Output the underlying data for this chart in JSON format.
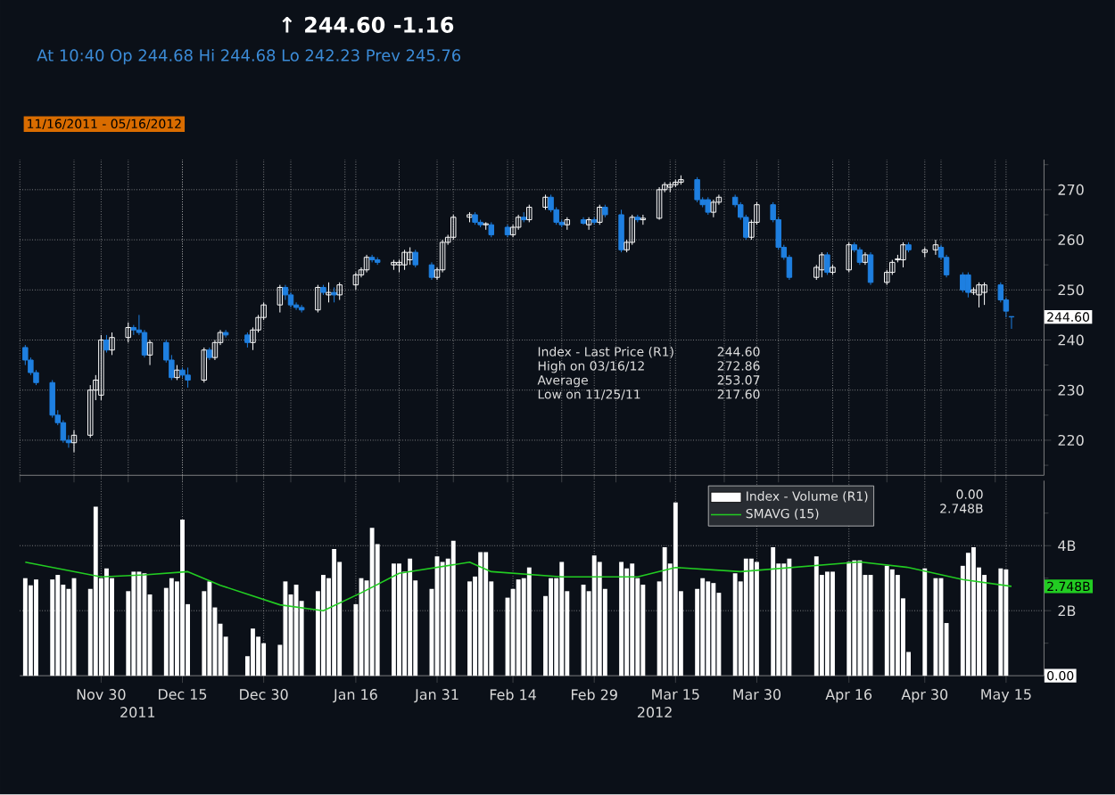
{
  "chart_data": [
    {
      "type": "candlestick",
      "title": "↑  244.60  -1.16",
      "subtitle": "At 10:40 Op 244.68   Hi 244.68   Lo 242.23   Prev 245.76",
      "annotations": [
        "Index - Last Price (R1)",
        "244.60",
        "High on 03/16/12",
        "272.86",
        "Average",
        "253.07",
        "Low on 11/25/11",
        "217.60",
        "11/16/2011 - 05/16/2012",
        {
          "text": "244.60",
          "x": "2012-05-16",
          "y": 244.6
        }
      ],
      "x": [
        "2011-11-16",
        "2011-11-17",
        "2011-11-18",
        "2011-11-21",
        "2011-11-22",
        "2011-11-23",
        "2011-11-24",
        "2011-11-25",
        "2011-11-28",
        "2011-11-29",
        "2011-11-30",
        "2011-12-01",
        "2011-12-02",
        "2011-12-05",
        "2011-12-06",
        "2011-12-07",
        "2011-12-08",
        "2011-12-09",
        "2011-12-12",
        "2011-12-13",
        "2011-12-14",
        "2011-12-15",
        "2011-12-16",
        "2011-12-19",
        "2011-12-20",
        "2011-12-21",
        "2011-12-22",
        "2011-12-23",
        "2011-12-27",
        "2011-12-28",
        "2011-12-29",
        "2011-12-30",
        "2012-01-02",
        "2012-01-03",
        "2012-01-04",
        "2012-01-05",
        "2012-01-06",
        "2012-01-09",
        "2012-01-10",
        "2012-01-11",
        "2012-01-12",
        "2012-01-13",
        "2012-01-16",
        "2012-01-17",
        "2012-01-18",
        "2012-01-19",
        "2012-01-20",
        "2012-01-23",
        "2012-01-24",
        "2012-01-25",
        "2012-01-26",
        "2012-01-27",
        "2012-01-30",
        "2012-01-31",
        "2012-02-01",
        "2012-02-02",
        "2012-02-03",
        "2012-02-06",
        "2012-02-07",
        "2012-02-08",
        "2012-02-09",
        "2012-02-10",
        "2012-02-13",
        "2012-02-14",
        "2012-02-15",
        "2012-02-16",
        "2012-02-17",
        "2012-02-20",
        "2012-02-21",
        "2012-02-22",
        "2012-02-23",
        "2012-02-24",
        "2012-02-27",
        "2012-02-28",
        "2012-02-29",
        "2012-03-01",
        "2012-03-02",
        "2012-03-05",
        "2012-03-06",
        "2012-03-07",
        "2012-03-08",
        "2012-03-09",
        "2012-03-12",
        "2012-03-13",
        "2012-03-14",
        "2012-03-15",
        "2012-03-16",
        "2012-03-19",
        "2012-03-20",
        "2012-03-21",
        "2012-03-22",
        "2012-03-23",
        "2012-03-26",
        "2012-03-27",
        "2012-03-28",
        "2012-03-29",
        "2012-03-30",
        "2012-04-02",
        "2012-04-03",
        "2012-04-04",
        "2012-04-05",
        "2012-04-10",
        "2012-04-11",
        "2012-04-12",
        "2012-04-13",
        "2012-04-16",
        "2012-04-17",
        "2012-04-18",
        "2012-04-19",
        "2012-04-20",
        "2012-04-23",
        "2012-04-24",
        "2012-04-25",
        "2012-04-26",
        "2012-04-27",
        "2012-04-30",
        "2012-05-02",
        "2012-05-03",
        "2012-05-04",
        "2012-05-07",
        "2012-05-08",
        "2012-05-09",
        "2012-05-10",
        "2012-05-11",
        "2012-05-14",
        "2012-05-15",
        "2012-05-16"
      ],
      "ohlc": [
        [
          238.5,
          239,
          235,
          236
        ],
        [
          236,
          236.5,
          233,
          233.5
        ],
        [
          233.5,
          234,
          231,
          231.5
        ],
        [
          231.5,
          232,
          224.5,
          225
        ],
        [
          225,
          226,
          223,
          223.5
        ],
        [
          223.5,
          224,
          219.5,
          220
        ],
        [
          220,
          221,
          218.5,
          219.5
        ],
        [
          219.5,
          222,
          217.6,
          221
        ],
        [
          221,
          231,
          220.5,
          230
        ],
        [
          230,
          233,
          228,
          232
        ],
        [
          229,
          241,
          228,
          240
        ],
        [
          240,
          241,
          237.5,
          238
        ],
        [
          238,
          241.5,
          237,
          240.5
        ],
        [
          240.5,
          243.5,
          239.5,
          242.5
        ],
        [
          242.5,
          243,
          241,
          242
        ],
        [
          242,
          245,
          241,
          241.5
        ],
        [
          241.5,
          242,
          236.5,
          237
        ],
        [
          237,
          240,
          235,
          239.5
        ],
        [
          239.5,
          240,
          235.5,
          236
        ],
        [
          236,
          237,
          232,
          232.5
        ],
        [
          232.5,
          235,
          232,
          234
        ],
        [
          234,
          234.5,
          232.5,
          233
        ],
        [
          233,
          234.5,
          230.5,
          232
        ],
        [
          232,
          238.5,
          231.5,
          238
        ],
        [
          238,
          238.5,
          236,
          236.5
        ],
        [
          236.5,
          240,
          236,
          239.5
        ],
        [
          239.5,
          242,
          239,
          241.5
        ],
        [
          241.5,
          242,
          240.5,
          241
        ],
        [
          241,
          241.5,
          238.5,
          239.5
        ],
        [
          239.5,
          242.5,
          238,
          242
        ],
        [
          242,
          245,
          241.5,
          244.5
        ],
        [
          244.5,
          247.5,
          244,
          247
        ],
        [
          247,
          251,
          245.5,
          250.5
        ],
        [
          250.5,
          251,
          248,
          249
        ],
        [
          249,
          249.5,
          246.5,
          247
        ],
        [
          247,
          247.5,
          246,
          246.5
        ],
        [
          246.5,
          247,
          245.5,
          246
        ],
        [
          246,
          251,
          245.5,
          250.5
        ],
        [
          250.5,
          251,
          249,
          249.5
        ],
        [
          249,
          251.5,
          247.5,
          249.5
        ],
        [
          249.5,
          250.5,
          247.5,
          249
        ],
        [
          249,
          251.5,
          248,
          251
        ],
        [
          251,
          253.5,
          250,
          253
        ],
        [
          253,
          254.5,
          252.5,
          254
        ],
        [
          254,
          257,
          253.5,
          256.5
        ],
        [
          256.5,
          257,
          255.5,
          256
        ],
        [
          256,
          256.5,
          255,
          255.5
        ],
        [
          255,
          256,
          254,
          255.5
        ],
        [
          255,
          256,
          253.5,
          255.5
        ],
        [
          255,
          258,
          254,
          257.5
        ],
        [
          256,
          258.5,
          255,
          257.5
        ],
        [
          257.5,
          258,
          254.5,
          255
        ],
        [
          255,
          255.5,
          252,
          252.5
        ],
        [
          252.5,
          254.5,
          252,
          254
        ],
        [
          254,
          260,
          253.5,
          259.5
        ],
        [
          259.5,
          261,
          259,
          260.5
        ],
        [
          260.5,
          265,
          260,
          264.5
        ],
        [
          264.5,
          265.5,
          263.5,
          265
        ],
        [
          265,
          265.5,
          263,
          263.5
        ],
        [
          263.5,
          264,
          262.5,
          263
        ],
        [
          263,
          263.5,
          262,
          263.2
        ],
        [
          263,
          263.5,
          260.5,
          261
        ],
        [
          262.5,
          263,
          260.5,
          261
        ],
        [
          261,
          263,
          260.5,
          262.5
        ],
        [
          262.5,
          265,
          262,
          264.5
        ],
        [
          264.5,
          265.5,
          263.5,
          264
        ],
        [
          264,
          267,
          263.5,
          266.5
        ],
        [
          266.5,
          269,
          266,
          268.5
        ],
        [
          268.5,
          269,
          265.5,
          266
        ],
        [
          266,
          266.5,
          263,
          263.5
        ],
        [
          263.5,
          264,
          262.5,
          263
        ],
        [
          263,
          264.5,
          262,
          264
        ],
        [
          264,
          264.5,
          263,
          263.3
        ],
        [
          263,
          264.5,
          262,
          264
        ],
        [
          264,
          264.5,
          263,
          263.5
        ],
        [
          263.5,
          267,
          263,
          266.5
        ],
        [
          266.5,
          267,
          264.5,
          265
        ],
        [
          265,
          266,
          257.5,
          258
        ],
        [
          258,
          260,
          257.5,
          259.5
        ],
        [
          259.5,
          265,
          259,
          264.5
        ],
        [
          264.5,
          265,
          263.5,
          264
        ],
        [
          264,
          265,
          263,
          264.3
        ],
        [
          264.3,
          270.5,
          264,
          270
        ],
        [
          270,
          271.5,
          269.5,
          271
        ],
        [
          270.5,
          271.5,
          269.5,
          271
        ],
        [
          271,
          272,
          270.5,
          271.5
        ],
        [
          271.5,
          272.86,
          271,
          272
        ],
        [
          272,
          272.5,
          267.5,
          268
        ],
        [
          268,
          268.5,
          266.5,
          267
        ],
        [
          268,
          268.5,
          265,
          265.5
        ],
        [
          265.5,
          268,
          264.5,
          267.5
        ],
        [
          267.5,
          269,
          267,
          268.5
        ],
        [
          268.5,
          269,
          266.5,
          267
        ],
        [
          267,
          267.5,
          264,
          264.5
        ],
        [
          264.5,
          265,
          260,
          260.5
        ],
        [
          260.5,
          264,
          260,
          263.5
        ],
        [
          263.5,
          267.5,
          263,
          267
        ],
        [
          267,
          267.5,
          263.5,
          264
        ],
        [
          264,
          264.5,
          258,
          258.5
        ],
        [
          258.5,
          259,
          256,
          256.5
        ],
        [
          256.5,
          257,
          252,
          252.5
        ],
        [
          252.5,
          255,
          252,
          254.5
        ],
        [
          254,
          257.5,
          252.5,
          257
        ],
        [
          257,
          257.5,
          253,
          253.5
        ],
        [
          253.5,
          255,
          253,
          254.5
        ],
        [
          254,
          259.5,
          253.5,
          259
        ],
        [
          259,
          259.5,
          257.5,
          258
        ],
        [
          258,
          258.5,
          255,
          255.5
        ],
        [
          255.5,
          257.5,
          255,
          257
        ],
        [
          257,
          257.5,
          251,
          251.5
        ],
        [
          251.5,
          254,
          251,
          253.5
        ],
        [
          253.5,
          256,
          253,
          255.5
        ],
        [
          256,
          257,
          255.5,
          256.2
        ],
        [
          256,
          259.5,
          254.5,
          259
        ],
        [
          259,
          259.5,
          257.5,
          258
        ],
        [
          257.5,
          258.5,
          256.5,
          258
        ],
        [
          258,
          260,
          257,
          259
        ],
        [
          258.5,
          259,
          256,
          256.5
        ],
        [
          256.5,
          257,
          252.5,
          253
        ],
        [
          253,
          253.5,
          249.5,
          250
        ],
        [
          253,
          253.5,
          248.5,
          249.5
        ],
        [
          249.5,
          250.5,
          249,
          250
        ],
        [
          249,
          251.5,
          246.5,
          251
        ],
        [
          249.5,
          251.5,
          247,
          251
        ],
        [
          251,
          251.5,
          247.5,
          248
        ],
        [
          248,
          248.5,
          244.5,
          245.76
        ],
        [
          244.68,
          244.68,
          242.23,
          244.6
        ]
      ],
      "xlim": [
        "2011-11-15",
        "2012-05-22"
      ],
      "ylim": [
        213,
        276
      ],
      "xticks": [
        {
          "value": "2011-11-30",
          "label": null
        },
        {
          "value": "2011-12-15",
          "label": null
        },
        {
          "value": "2011-12-30",
          "label": null
        },
        {
          "value": "2012-01-16",
          "label": null
        },
        {
          "value": "2012-01-31",
          "label": null
        },
        {
          "value": "2012-02-14",
          "label": null
        },
        {
          "value": "2012-02-29",
          "label": null
        },
        {
          "value": "2012-03-15",
          "label": null
        },
        {
          "value": "2012-03-30",
          "label": null
        },
        {
          "value": "2012-04-16",
          "label": null
        },
        {
          "value": "2012-04-30",
          "label": null
        },
        {
          "value": "2012-05-15",
          "label": null
        }
      ],
      "yticks": [
        {
          "value": 215,
          "label": null
        },
        220,
        {
          "value": 225,
          "label": null
        },
        230,
        {
          "value": 235,
          "label": null
        },
        240,
        {
          "value": 245,
          "label": null
        },
        250,
        {
          "value": 255,
          "label": null
        },
        260,
        {
          "value": 265,
          "label": null
        },
        270,
        {
          "value": 275,
          "label": null
        }
      ],
      "grid": true,
      "tick_labels": "y"
    },
    {
      "type": "bar",
      "x": [
        "2011-11-16",
        "2011-11-17",
        "2011-11-18",
        "2011-11-21",
        "2011-11-22",
        "2011-11-23",
        "2011-11-24",
        "2011-11-25",
        "2011-11-28",
        "2011-11-29",
        "2011-11-30",
        "2011-12-01",
        "2011-12-02",
        "2011-12-05",
        "2011-12-06",
        "2011-12-07",
        "2011-12-08",
        "2011-12-09",
        "2011-12-12",
        "2011-12-13",
        "2011-12-14",
        "2011-12-15",
        "2011-12-16",
        "2011-12-19",
        "2011-12-20",
        "2011-12-21",
        "2011-12-22",
        "2011-12-23",
        "2011-12-27",
        "2011-12-28",
        "2011-12-29",
        "2011-12-30",
        "2012-01-02",
        "2012-01-03",
        "2012-01-04",
        "2012-01-05",
        "2012-01-06",
        "2012-01-09",
        "2012-01-10",
        "2012-01-11",
        "2012-01-12",
        "2012-01-13",
        "2012-01-16",
        "2012-01-17",
        "2012-01-18",
        "2012-01-19",
        "2012-01-20",
        "2012-01-23",
        "2012-01-24",
        "2012-01-25",
        "2012-01-26",
        "2012-01-27",
        "2012-01-30",
        "2012-01-31",
        "2012-02-01",
        "2012-02-02",
        "2012-02-03",
        "2012-02-06",
        "2012-02-07",
        "2012-02-08",
        "2012-02-09",
        "2012-02-10",
        "2012-02-13",
        "2012-02-14",
        "2012-02-15",
        "2012-02-16",
        "2012-02-17",
        "2012-02-20",
        "2012-02-21",
        "2012-02-22",
        "2012-02-23",
        "2012-02-24",
        "2012-02-27",
        "2012-02-28",
        "2012-02-29",
        "2012-03-01",
        "2012-03-02",
        "2012-03-05",
        "2012-03-06",
        "2012-03-07",
        "2012-03-08",
        "2012-03-09",
        "2012-03-12",
        "2012-03-13",
        "2012-03-14",
        "2012-03-15",
        "2012-03-16",
        "2012-03-19",
        "2012-03-20",
        "2012-03-21",
        "2012-03-22",
        "2012-03-23",
        "2012-03-26",
        "2012-03-27",
        "2012-03-28",
        "2012-03-29",
        "2012-03-30",
        "2012-04-02",
        "2012-04-03",
        "2012-04-04",
        "2012-04-05",
        "2012-04-10",
        "2012-04-11",
        "2012-04-12",
        "2012-04-13",
        "2012-04-16",
        "2012-04-17",
        "2012-04-18",
        "2012-04-19",
        "2012-04-20",
        "2012-04-23",
        "2012-04-24",
        "2012-04-25",
        "2012-04-26",
        "2012-04-27",
        "2012-04-30",
        "2012-05-02",
        "2012-05-03",
        "2012-05-04",
        "2012-05-07",
        "2012-05-08",
        "2012-05-09",
        "2012-05-10",
        "2012-05-11",
        "2012-05-14",
        "2012-05-15",
        "2012-05-16"
      ],
      "series": [
        {
          "name": "Index - Volume (R1)",
          "color": "#ffffff",
          "values": [
            3.0,
            2.78,
            2.96,
            2.96,
            3.1,
            2.8,
            2.67,
            3.0,
            2.67,
            5.2,
            3.0,
            3.3,
            3.0,
            2.6,
            3.2,
            3.2,
            3.15,
            2.5,
            2.7,
            3.0,
            2.9,
            4.8,
            2.2,
            2.6,
            2.9,
            2.1,
            1.6,
            1.2,
            0.6,
            1.45,
            1.2,
            1.0,
            0.95,
            2.9,
            2.5,
            2.8,
            2.3,
            2.6,
            3.1,
            3.0,
            3.9,
            3.5,
            2.2,
            3.0,
            2.93,
            4.55,
            4.05,
            3.45,
            3.45,
            3.2,
            3.6,
            2.93,
            2.67,
            3.67,
            3.5,
            3.6,
            4.15,
            2.9,
            3.05,
            3.8,
            3.8,
            2.9,
            2.4,
            2.67,
            2.96,
            3.0,
            3.33,
            2.45,
            3.0,
            3.0,
            3.5,
            2.6,
            2.8,
            2.6,
            3.7,
            3.5,
            2.67,
            3.5,
            3.3,
            3.45,
            3.0,
            2.8,
            2.9,
            3.95,
            3.45,
            5.33,
            2.6,
            2.67,
            3.0,
            2.9,
            2.85,
            2.55,
            3.15,
            2.9,
            3.6,
            3.6,
            3.5,
            3.95,
            3.45,
            3.45,
            3.6,
            3.67,
            3.1,
            3.2,
            3.2,
            3.5,
            3.55,
            3.55,
            3.1,
            3.1,
            3.38,
            3.27,
            3.1,
            2.38,
            0.73,
            3.3,
            3.0,
            3.0,
            1.62,
            3.38,
            3.78,
            3.95,
            3.33,
            3.1,
            3.3,
            3.27,
            0
          ]
        },
        {
          "name": "SMAVG (15)",
          "type": "line",
          "color": "#22cc22",
          "x": [
            "2011-11-16",
            "2011-11-30",
            "2011-12-08",
            "2011-12-16",
            "2011-12-22",
            "2012-01-02",
            "2012-01-10",
            "2012-01-17",
            "2012-01-24",
            "2012-02-06",
            "2012-02-10",
            "2012-02-23",
            "2012-03-08",
            "2012-03-15",
            "2012-03-27",
            "2012-04-18",
            "2012-04-27",
            "2012-05-07",
            "2012-05-16"
          ],
          "values": [
            3.49,
            3.04,
            3.1,
            3.2,
            2.78,
            2.18,
            2.0,
            2.55,
            3.15,
            3.49,
            3.2,
            3.04,
            3.04,
            3.33,
            3.2,
            3.5,
            3.33,
            2.96,
            2.748
          ]
        }
      ],
      "annotations": [
        "0.00",
        "2.748B",
        {
          "text": "0.00",
          "x": "2012-05-16",
          "y": 0
        },
        {
          "text": "2.748B",
          "x": "2012-05-16",
          "y": 2.748
        },
        "2011",
        "2012"
      ],
      "xlim": [
        "2011-11-15",
        "2012-05-22"
      ],
      "ylim": [
        0,
        6
      ],
      "xticks": [
        {
          "value": "2011-11-30",
          "label": "Nov 30"
        },
        {
          "value": "2011-12-15",
          "label": "Dec 15"
        },
        {
          "value": "2011-12-30",
          "label": "Dec 30"
        },
        {
          "value": "2012-01-16",
          "label": "Jan 16"
        },
        {
          "value": "2012-01-31",
          "label": "Jan 31"
        },
        {
          "value": "2012-02-14",
          "label": "Feb 14"
        },
        {
          "value": "2012-02-29",
          "label": "Feb 29"
        },
        {
          "value": "2012-03-15",
          "label": "Mar 15"
        },
        {
          "value": "2012-03-30",
          "label": "Mar 30"
        },
        {
          "value": "2012-04-16",
          "label": "Apr 16"
        },
        {
          "value": "2012-04-30",
          "label": "Apr 30"
        },
        {
          "value": "2012-05-15",
          "label": "May 15"
        }
      ],
      "yticks": [
        {
          "value": 1,
          "label": null
        },
        {
          "value": 2,
          "label": "2B"
        },
        {
          "value": 3,
          "label": null
        },
        {
          "value": 4,
          "label": "4B"
        },
        {
          "value": 5,
          "label": null
        }
      ],
      "grid": true,
      "legend": "top right"
    }
  ]
}
